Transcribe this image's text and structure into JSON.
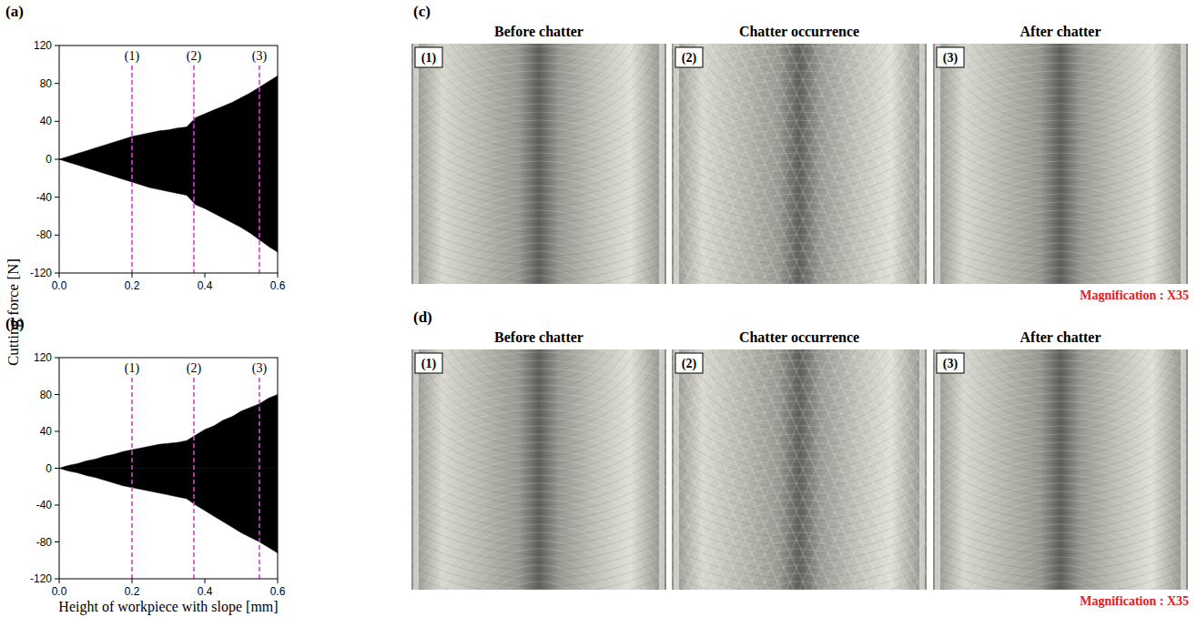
{
  "chart_data": [
    {
      "type": "area",
      "panel": "(a)",
      "ylabel": "Cutting force [N]",
      "x": [
        0,
        0.025,
        0.05,
        0.075,
        0.1,
        0.125,
        0.15,
        0.175,
        0.2,
        0.225,
        0.25,
        0.275,
        0.3,
        0.325,
        0.35,
        0.375,
        0.4,
        0.425,
        0.45,
        0.475,
        0.5,
        0.525,
        0.55,
        0.575,
        0.6
      ],
      "series": [
        {
          "color": "#000000",
          "values": [
            0,
            3,
            6,
            9,
            12,
            15,
            18,
            21,
            24,
            26,
            28,
            30,
            31,
            33,
            34,
            44,
            48,
            52,
            56,
            60,
            65,
            70,
            76,
            82,
            88
          ]
        },
        {
          "color": "#000000",
          "values": [
            0,
            -3,
            -6,
            -9,
            -12,
            -15,
            -18,
            -21,
            -24,
            -27,
            -30,
            -32,
            -34,
            -36,
            -38,
            -48,
            -52,
            -57,
            -62,
            -67,
            -72,
            -78,
            -85,
            -92,
            -98
          ]
        }
      ],
      "xlim": [
        0,
        0.6
      ],
      "xticks": [
        {
          "value": 0,
          "label": "0.0"
        },
        0.2,
        0.4,
        0.6
      ],
      "ylim": [
        -120,
        120
      ],
      "yticks": [
        -120,
        -80,
        -40,
        0,
        40,
        80,
        120
      ],
      "annotations": [
        {
          "x": 0.2,
          "label": "(1)"
        },
        {
          "x": 0.37,
          "label": "(2)"
        },
        {
          "x": 0.55,
          "label": "(3)"
        }
      ]
    },
    {
      "type": "area",
      "panel": "(b)",
      "xlabel": "Height of workpiece with slope [mm]",
      "x": [
        0,
        0.025,
        0.05,
        0.075,
        0.1,
        0.125,
        0.15,
        0.175,
        0.2,
        0.225,
        0.25,
        0.275,
        0.3,
        0.325,
        0.35,
        0.375,
        0.4,
        0.425,
        0.45,
        0.475,
        0.5,
        0.525,
        0.55,
        0.575,
        0.6
      ],
      "series": [
        {
          "color": "#000000",
          "values": [
            0,
            3,
            5,
            8,
            10,
            13,
            15,
            18,
            20,
            22,
            24,
            26,
            27,
            28,
            30,
            36,
            42,
            46,
            52,
            56,
            62,
            66,
            70,
            76,
            80
          ]
        },
        {
          "color": "#000000",
          "values": [
            0,
            -3,
            -5,
            -8,
            -10,
            -13,
            -16,
            -19,
            -21,
            -23,
            -25,
            -27,
            -29,
            -31,
            -33,
            -40,
            -46,
            -52,
            -58,
            -64,
            -70,
            -75,
            -80,
            -86,
            -92
          ]
        }
      ],
      "xlim": [
        0,
        0.6
      ],
      "xticks": [
        {
          "value": 0,
          "label": "0.0"
        },
        0.2,
        0.4,
        0.6
      ],
      "ylim": [
        -120,
        120
      ],
      "yticks": [
        -120,
        -80,
        -40,
        0,
        40,
        80,
        120
      ],
      "annotations": [
        {
          "x": 0.2,
          "label": "(1)"
        },
        {
          "x": 0.37,
          "label": "(2)"
        },
        {
          "x": 0.55,
          "label": "(3)"
        }
      ]
    }
  ],
  "photo_panels": [
    {
      "panel": "(c)",
      "magnification": "Magnification : X35",
      "images": [
        {
          "number": "(1)",
          "title": "Before chatter"
        },
        {
          "number": "(2)",
          "title": "Chatter occurrence"
        },
        {
          "number": "(3)",
          "title": "After chatter"
        }
      ]
    },
    {
      "panel": "(d)",
      "magnification": "Magnification : X35",
      "images": [
        {
          "number": "(1)",
          "title": "Before chatter"
        },
        {
          "number": "(2)",
          "title": "Chatter occurrence"
        },
        {
          "number": "(3)",
          "title": "After chatter"
        }
      ]
    }
  ]
}
